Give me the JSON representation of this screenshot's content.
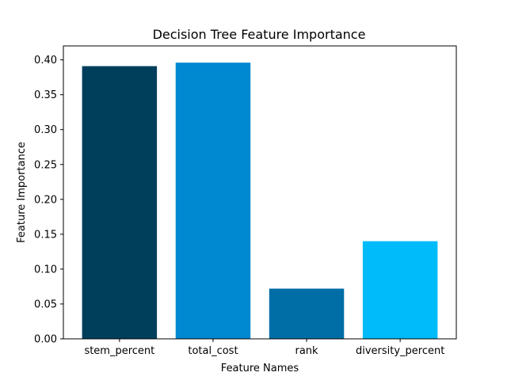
{
  "chart_data": {
    "type": "bar",
    "title": "Decision Tree Feature Importance",
    "xlabel": "Feature Names",
    "ylabel": "Feature Importance",
    "categories": [
      "stem_percent",
      "total_cost",
      "rank",
      "diversity_percent"
    ],
    "values": [
      0.391,
      0.396,
      0.072,
      0.14
    ],
    "colors": [
      "#003f5c",
      "#0088d1",
      "#006ea6",
      "#00bbf9"
    ],
    "ylim": [
      0,
      0.42
    ],
    "yticks": [
      "0.00",
      "0.05",
      "0.10",
      "0.15",
      "0.20",
      "0.25",
      "0.30",
      "0.35",
      "0.40"
    ],
    "grid": false,
    "legend": "none"
  }
}
